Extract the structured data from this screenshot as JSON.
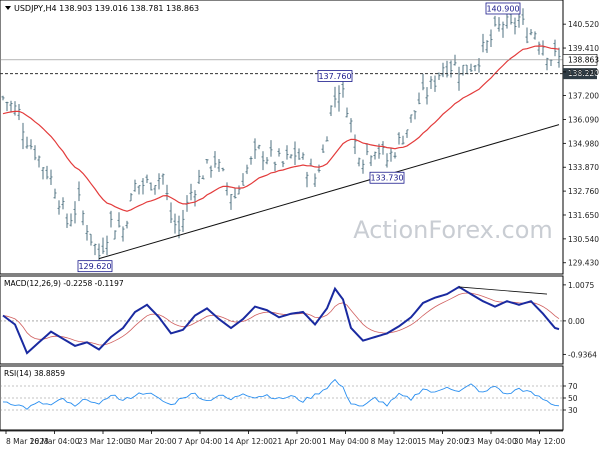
{
  "colors": {
    "price_bar": "#5f7f8c",
    "ma": "#e33b3b",
    "trendline": "#111111",
    "level_line": "#333333",
    "macd_line": "#1a2aa0",
    "signal_line": "#d06060",
    "rsi_line": "#2a8ff0",
    "label_border": "#1a1a8c",
    "label_text": "#1a1a8c",
    "axis_text": "#222222",
    "watermark": "#c9cdd3"
  },
  "header": {
    "symbol_info": "USDJPY,H4 138.903 139.016 138.781 138.863",
    "macd_info": "MACD(12,26,9) -0.2258 -0.1197",
    "rsi_info": "RSI(14) 38.8859"
  },
  "watermark": "ActionForex.com",
  "current_price_label": "138.863",
  "level_label": "138.220",
  "chart_data": [
    {
      "type": "ohlc-bar",
      "y_ticks": [
        "140.520",
        "139.410",
        "138.300",
        "137.200",
        "136.090",
        "134.980",
        "133.870",
        "132.760",
        "131.650",
        "130.540",
        "129.430"
      ],
      "y_tick_values": [
        140.52,
        139.41,
        138.3,
        137.2,
        136.09,
        134.98,
        133.87,
        132.76,
        131.65,
        130.54,
        129.43
      ],
      "ylim": [
        129.0,
        141.55
      ],
      "x_ticks": [
        "8 Mar 2023",
        "16 Mar 04:00",
        "23 Mar 12:00",
        "30 Mar 20:00",
        "7 Apr 04:00",
        "14 Apr 12:00",
        "21 Apr 20:00",
        "1 May 04:00",
        "8 May 12:00",
        "15 May 20:00",
        "23 May 04:00",
        "30 May 12:00"
      ],
      "annotations": [
        {
          "text": "140.900",
          "bar": 125,
          "value": 140.9,
          "pos": "above"
        },
        {
          "text": "137.760",
          "bar": 83,
          "value": 137.76,
          "pos": "above"
        },
        {
          "text": "133.730",
          "bar": 96,
          "value": 133.73,
          "pos": "below"
        },
        {
          "text": "129.620",
          "bar": 23,
          "value": 129.62,
          "pos": "below"
        }
      ],
      "horizontal_levels": [
        138.863,
        138.22
      ],
      "trendline": {
        "from": {
          "bar": 24,
          "value": 129.62
        },
        "to": {
          "bar": 139,
          "value": 135.85
        }
      },
      "anchors": [
        [
          0,
          137.1
        ],
        [
          4,
          136.4
        ],
        [
          6,
          135.2
        ],
        [
          9,
          134.3
        ],
        [
          13,
          133.0
        ],
        [
          16,
          131.3
        ],
        [
          19,
          132.2
        ],
        [
          22,
          130.6
        ],
        [
          24,
          129.8
        ],
        [
          27,
          131.3
        ],
        [
          30,
          131.0
        ],
        [
          33,
          133.0
        ],
        [
          36,
          133.1
        ],
        [
          40,
          133.5
        ],
        [
          42,
          131.5
        ],
        [
          44,
          130.9
        ],
        [
          47,
          132.7
        ],
        [
          50,
          133.6
        ],
        [
          53,
          134.2
        ],
        [
          56,
          133.0
        ],
        [
          58,
          132.5
        ],
        [
          61,
          133.8
        ],
        [
          64,
          134.6
        ],
        [
          67,
          134.3
        ],
        [
          70,
          134.0
        ],
        [
          73,
          134.5
        ],
        [
          76,
          133.9
        ],
        [
          78,
          133.4
        ],
        [
          80,
          134.5
        ],
        [
          82,
          136.6
        ],
        [
          84,
          137.6
        ],
        [
          86,
          136.8
        ],
        [
          88,
          135.0
        ],
        [
          90,
          134.4
        ],
        [
          93,
          134.9
        ],
        [
          96,
          134.2
        ],
        [
          99,
          135.0
        ],
        [
          101,
          135.7
        ],
        [
          104,
          136.9
        ],
        [
          107,
          137.6
        ],
        [
          110,
          138.6
        ],
        [
          113,
          138.6
        ],
        [
          116,
          138.4
        ],
        [
          119,
          139.0
        ],
        [
          122,
          139.8
        ],
        [
          125,
          140.6
        ],
        [
          127,
          140.3
        ],
        [
          129,
          140.8
        ],
        [
          131,
          140.1
        ],
        [
          133,
          140.2
        ],
        [
          135,
          139.6
        ],
        [
          137,
          139.0
        ],
        [
          139,
          138.9
        ]
      ]
    },
    {
      "type": "line",
      "title": "MACD(12,26,9)",
      "ylim": [
        -1.15,
        1.2
      ],
      "y_ticks": [
        "1.0075",
        "0.00",
        "-0.9364"
      ],
      "y_tick_values": [
        1.0075,
        0.0,
        -0.9364
      ],
      "series": [
        {
          "anchors": [
            [
              0,
              0.15
            ],
            [
              3,
              -0.1
            ],
            [
              6,
              -0.9
            ],
            [
              9,
              -0.6
            ],
            [
              12,
              -0.3
            ],
            [
              15,
              -0.5
            ],
            [
              18,
              -0.7
            ],
            [
              21,
              -0.6
            ],
            [
              24,
              -0.8
            ],
            [
              27,
              -0.45
            ],
            [
              30,
              -0.2
            ],
            [
              33,
              0.25
            ],
            [
              36,
              0.45
            ],
            [
              39,
              0.1
            ],
            [
              42,
              -0.35
            ],
            [
              45,
              -0.25
            ],
            [
              48,
              0.15
            ],
            [
              51,
              0.35
            ],
            [
              54,
              0.05
            ],
            [
              57,
              -0.2
            ],
            [
              60,
              0.05
            ],
            [
              63,
              0.4
            ],
            [
              66,
              0.3
            ],
            [
              69,
              0.1
            ],
            [
              72,
              0.2
            ],
            [
              75,
              0.25
            ],
            [
              78,
              -0.1
            ],
            [
              81,
              0.35
            ],
            [
              83,
              0.9
            ],
            [
              85,
              0.6
            ],
            [
              87,
              -0.2
            ],
            [
              90,
              -0.55
            ],
            [
              93,
              -0.45
            ],
            [
              96,
              -0.35
            ],
            [
              99,
              -0.15
            ],
            [
              102,
              0.1
            ],
            [
              105,
              0.5
            ],
            [
              108,
              0.65
            ],
            [
              111,
              0.75
            ],
            [
              114,
              0.95
            ],
            [
              117,
              0.75
            ],
            [
              120,
              0.55
            ],
            [
              123,
              0.4
            ],
            [
              126,
              0.55
            ],
            [
              129,
              0.45
            ],
            [
              132,
              0.55
            ],
            [
              135,
              0.2
            ],
            [
              138,
              -0.2
            ],
            [
              139,
              -0.23
            ]
          ]
        }
      ],
      "trendline": {
        "from": {
          "bar": 114,
          "value": 0.95
        },
        "to": {
          "bar": 136,
          "value": 0.75
        }
      }
    },
    {
      "type": "line",
      "title": "RSI(14)",
      "ylim": [
        0,
        100
      ],
      "y_ticks": [
        "70",
        "50",
        "30"
      ],
      "y_tick_values": [
        70,
        50,
        30
      ],
      "series": [
        {
          "anchors": [
            [
              0,
              45
            ],
            [
              3,
              40
            ],
            [
              6,
              33
            ],
            [
              9,
              42
            ],
            [
              12,
              38
            ],
            [
              15,
              48
            ],
            [
              18,
              35
            ],
            [
              21,
              50
            ],
            [
              24,
              37
            ],
            [
              27,
              57
            ],
            [
              30,
              45
            ],
            [
              33,
              55
            ],
            [
              36,
              60
            ],
            [
              39,
              48
            ],
            [
              42,
              38
            ],
            [
              45,
              52
            ],
            [
              48,
              57
            ],
            [
              51,
              45
            ],
            [
              54,
              55
            ],
            [
              57,
              47
            ],
            [
              60,
              58
            ],
            [
              63,
              52
            ],
            [
              66,
              55
            ],
            [
              69,
              48
            ],
            [
              72,
              53
            ],
            [
              75,
              45
            ],
            [
              78,
              55
            ],
            [
              81,
              68
            ],
            [
              83,
              80
            ],
            [
              85,
              66
            ],
            [
              87,
              42
            ],
            [
              90,
              35
            ],
            [
              93,
              50
            ],
            [
              96,
              38
            ],
            [
              99,
              55
            ],
            [
              102,
              48
            ],
            [
              105,
              66
            ],
            [
              108,
              58
            ],
            [
              111,
              70
            ],
            [
              114,
              60
            ],
            [
              117,
              72
            ],
            [
              120,
              58
            ],
            [
              123,
              70
            ],
            [
              126,
              55
            ],
            [
              129,
              66
            ],
            [
              132,
              58
            ],
            [
              135,
              48
            ],
            [
              138,
              38
            ],
            [
              139,
              39
            ]
          ]
        }
      ]
    }
  ]
}
